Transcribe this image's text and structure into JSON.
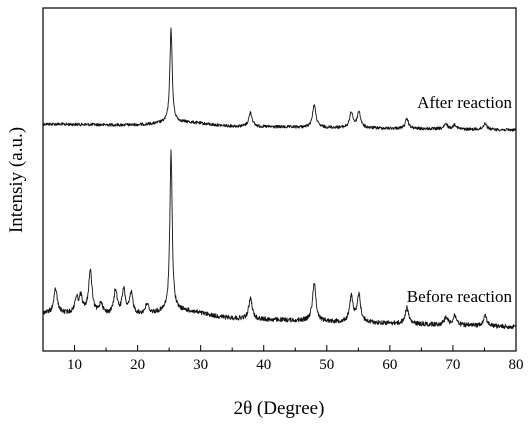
{
  "chart_data": {
    "type": "line",
    "xlabel": "2θ (Degree)",
    "ylabel": "Intensiy (a.u.)",
    "xlim": [
      5,
      80
    ],
    "xticks": [
      10,
      20,
      30,
      40,
      50,
      60,
      70,
      80
    ],
    "y_tick_labels": false,
    "grid": false,
    "legend": "none",
    "series": [
      {
        "name": "After reaction",
        "peaks": [
          {
            "x": 25.3,
            "height": 100
          },
          {
            "x": 37.9,
            "height": 15
          },
          {
            "x": 48.0,
            "height": 24
          },
          {
            "x": 53.9,
            "height": 16
          },
          {
            "x": 55.1,
            "height": 17
          },
          {
            "x": 62.7,
            "height": 10
          },
          {
            "x": 68.9,
            "height": 5
          },
          {
            "x": 70.3,
            "height": 5
          },
          {
            "x": 75.1,
            "height": 7
          }
        ]
      },
      {
        "name": "Before reaction",
        "peaks": [
          {
            "x": 7.0,
            "height": 15
          },
          {
            "x": 10.3,
            "height": 9
          },
          {
            "x": 11.0,
            "height": 10
          },
          {
            "x": 12.5,
            "height": 27
          },
          {
            "x": 14.2,
            "height": 7
          },
          {
            "x": 16.5,
            "height": 15
          },
          {
            "x": 17.8,
            "height": 15
          },
          {
            "x": 19.0,
            "height": 13
          },
          {
            "x": 21.5,
            "height": 6
          },
          {
            "x": 25.3,
            "height": 100
          },
          {
            "x": 37.9,
            "height": 13
          },
          {
            "x": 48.0,
            "height": 24
          },
          {
            "x": 53.9,
            "height": 16
          },
          {
            "x": 55.1,
            "height": 17
          },
          {
            "x": 62.7,
            "height": 10
          },
          {
            "x": 68.9,
            "height": 5
          },
          {
            "x": 70.3,
            "height": 6
          },
          {
            "x": 75.1,
            "height": 7
          }
        ]
      }
    ]
  }
}
